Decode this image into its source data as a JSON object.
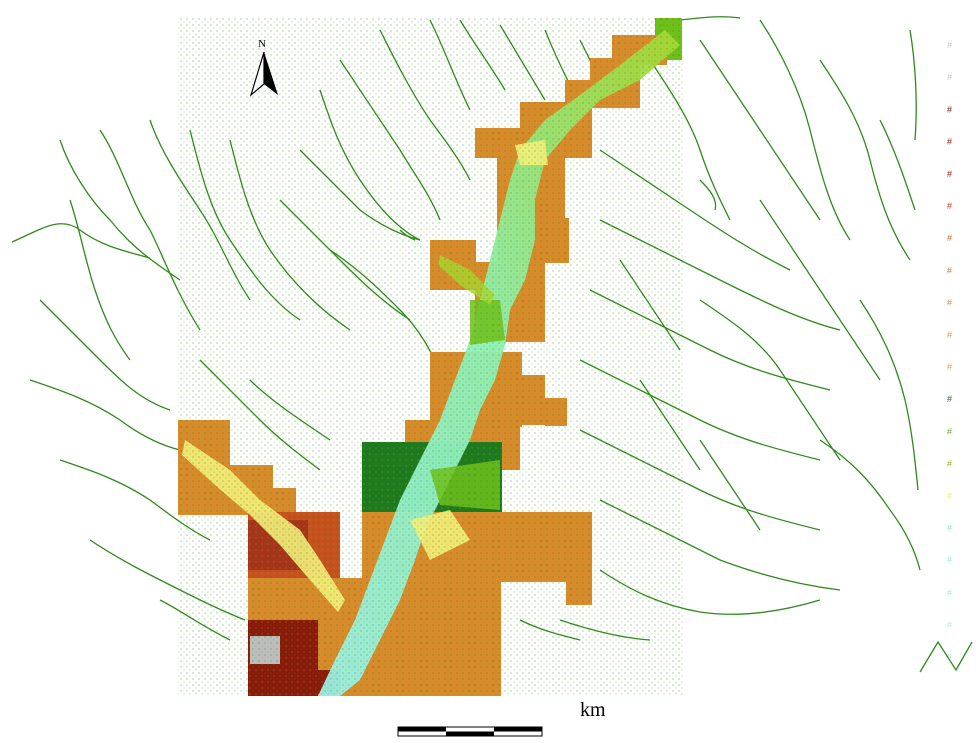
{
  "map": {
    "north_label": "N",
    "scale_unit": "km",
    "colors": {
      "river": "#2e8b1a",
      "highland_dark": "#8b1a0a",
      "highland": "#c8501e",
      "upland": "#d98a2a",
      "slope": "#e0a030",
      "forest_dark": "#1f7a1f",
      "forest": "#6fbf1a",
      "lowland": "#a6d62e",
      "plain": "#f3ef7a",
      "valley": "#8ef0b4",
      "valley_floor": "#9cf0e6",
      "peak_rock": "#bdbdbd"
    }
  },
  "legend": {
    "items": [
      {
        "symbol": "#",
        "color": "#c8c8c8"
      },
      {
        "symbol": "#",
        "color": "#c8c8c8"
      },
      {
        "symbol": "#",
        "color": "#7a1a0a"
      },
      {
        "symbol": "#",
        "color": "#9a1a0a"
      },
      {
        "symbol": "#",
        "color": "#a01a0a"
      },
      {
        "symbol": "#",
        "color": "#c83a12"
      },
      {
        "symbol": "#",
        "color": "#d8661e"
      },
      {
        "symbol": "#",
        "color": "#d97a22"
      },
      {
        "symbol": "#",
        "color": "#e08a26"
      },
      {
        "symbol": "#",
        "color": "#e09a2a"
      },
      {
        "symbol": "#",
        "color": "#e0a030"
      },
      {
        "symbol": "#",
        "color": "#1f6b1f"
      },
      {
        "symbol": "#",
        "color": "#5fb01a"
      },
      {
        "symbol": "#",
        "color": "#7fc21a"
      },
      {
        "symbol": "#",
        "color": "#f3ef7a"
      },
      {
        "symbol": "#",
        "color": "#8ef0b4"
      },
      {
        "symbol": "#",
        "color": "#9cf0d0"
      },
      {
        "symbol": "#",
        "color": "#9ceee0"
      },
      {
        "symbol": "#",
        "color": "#a8f0ec"
      },
      {
        "symbol": "#",
        "color": "#b0f0f0"
      }
    ],
    "river_symbol_color": "#2e8b1a"
  }
}
